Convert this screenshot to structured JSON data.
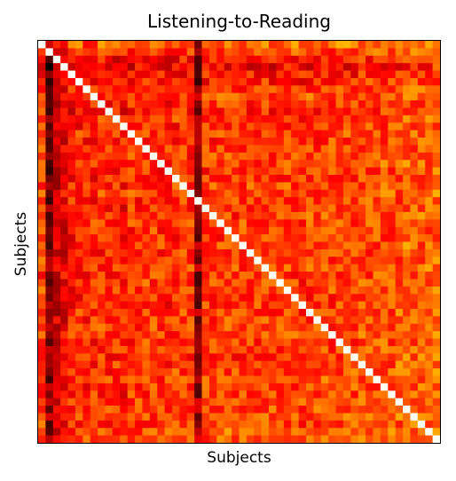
{
  "chart_data": {
    "type": "heatmap",
    "title": "Listening-to-Reading",
    "xlabel": "Subjects",
    "ylabel": "Subjects",
    "n_subjects": 54,
    "colormap": "hot",
    "color_range": [
      0,
      1
    ],
    "grid": false,
    "legend": "none",
    "diagonal_value": 0.99,
    "row_base": [
      0.62,
      0.56,
      0.5,
      0.46,
      0.5,
      0.52,
      0.55,
      0.58,
      0.54,
      0.52,
      0.55,
      0.53,
      0.55,
      0.54,
      0.55,
      0.55,
      0.55,
      0.54,
      0.53,
      0.56,
      0.56,
      0.55,
      0.54,
      0.56,
      0.56,
      0.55,
      0.54,
      0.55,
      0.54,
      0.55,
      0.56,
      0.55,
      0.55,
      0.56,
      0.54,
      0.55,
      0.56,
      0.55,
      0.56,
      0.57,
      0.55,
      0.56,
      0.55,
      0.56,
      0.56,
      0.57,
      0.56,
      0.55,
      0.57,
      0.58,
      0.57,
      0.56,
      0.6,
      0.6
    ],
    "col_base": [
      0.45,
      0.18,
      0.3,
      0.34,
      0.4,
      0.43,
      0.4,
      0.42,
      0.44,
      0.43,
      0.42,
      0.4,
      0.44,
      0.43,
      0.45,
      0.45,
      0.44,
      0.42,
      0.44,
      0.45,
      0.44,
      0.2,
      0.44,
      0.45,
      0.45,
      0.46,
      0.44,
      0.45,
      0.45,
      0.44,
      0.46,
      0.45,
      0.45,
      0.46,
      0.45,
      0.44,
      0.46,
      0.45,
      0.46,
      0.46,
      0.47,
      0.47,
      0.46,
      0.47,
      0.47,
      0.47,
      0.49,
      0.48,
      0.49,
      0.52,
      0.49,
      0.5,
      0.5,
      0.52
    ],
    "cells_note": "value[i][j] = clamp(row_base[i] + col_base[j] - 0.55 + deterministic noise), diagonal = diagonal_value"
  }
}
